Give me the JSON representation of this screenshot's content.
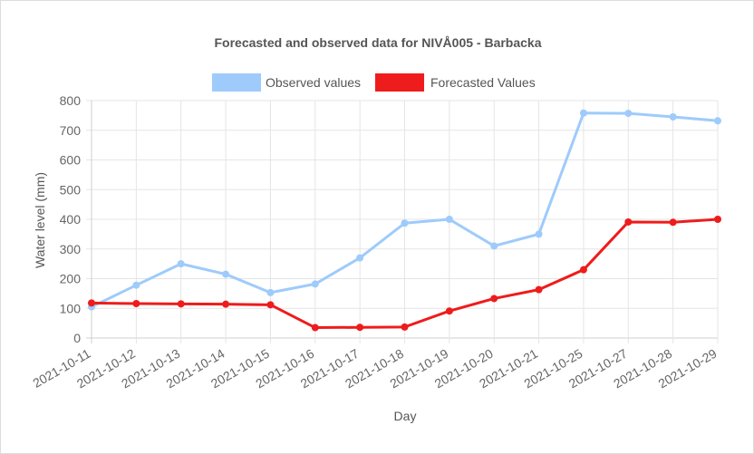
{
  "chart_data": {
    "type": "line",
    "title": "Forecasted and observed data for NIVÅ005 - Barbacka",
    "xlabel": "Day",
    "ylabel": "Water level (mm)",
    "ylim": [
      0,
      800
    ],
    "yticks": [
      0,
      100,
      200,
      300,
      400,
      500,
      600,
      700,
      800
    ],
    "grid": true,
    "legend_position": "top",
    "categories": [
      "2021-10-11",
      "2021-10-12",
      "2021-10-13",
      "2021-10-14",
      "2021-10-15",
      "2021-10-16",
      "2021-10-17",
      "2021-10-18",
      "2021-10-19",
      "2021-10-20",
      "2021-10-21",
      "2021-10-25",
      "2021-10-27",
      "2021-10-28",
      "2021-10-29"
    ],
    "series": [
      {
        "name": "Observed values",
        "color": "#9ecbfb",
        "values": [
          105,
          178,
          250,
          215,
          153,
          182,
          270,
          387,
          400,
          310,
          350,
          758,
          757,
          745,
          732
        ]
      },
      {
        "name": "Forecasted Values",
        "color": "#ee1c1c",
        "values": [
          118,
          116,
          115,
          114,
          112,
          35,
          36,
          37,
          91,
          133,
          163,
          230,
          391,
          390,
          400
        ]
      }
    ]
  }
}
